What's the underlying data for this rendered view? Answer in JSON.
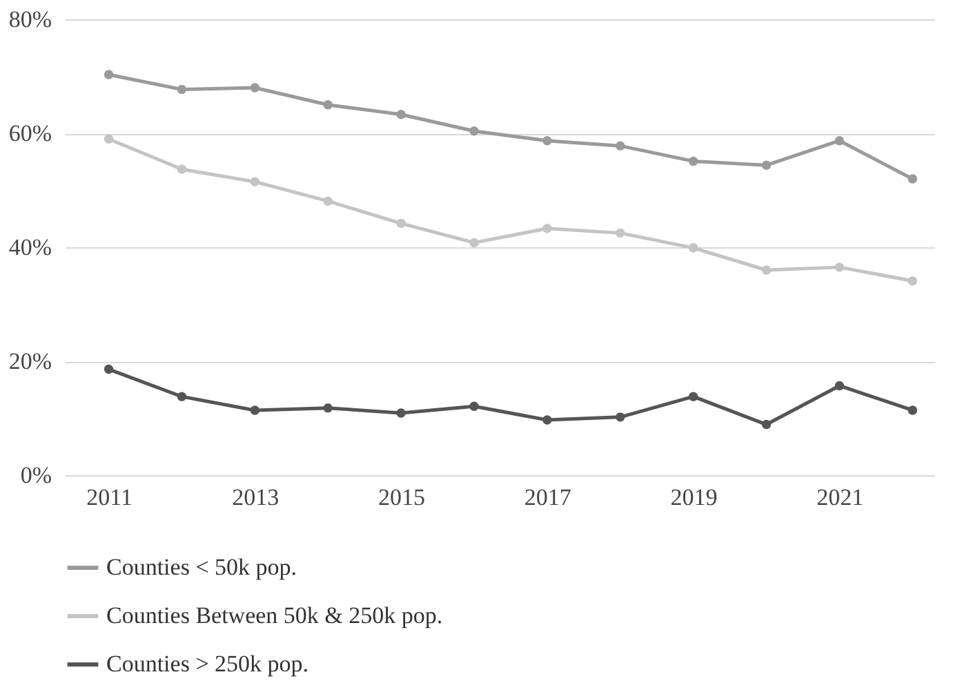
{
  "chart_data": {
    "type": "line",
    "x": [
      2011,
      2012,
      2013,
      2014,
      2015,
      2016,
      2017,
      2018,
      2019,
      2020,
      2021,
      2022
    ],
    "series": [
      {
        "name": "Counties < 50k pop.",
        "color": "#9a9a9a",
        "values": [
          70.3,
          67.7,
          68,
          65,
          63.3,
          60.4,
          58.7,
          57.8,
          55.1,
          54.4,
          58.7,
          52
        ]
      },
      {
        "name": "Counties Between 50k & 250k pop.",
        "color": "#c4c4c4",
        "values": [
          59,
          53.7,
          51.5,
          48.1,
          44.2,
          40.8,
          43.3,
          42.5,
          39.9,
          36,
          36.5,
          34.1
        ]
      },
      {
        "name": "Counties > 250k pop.",
        "color": "#555555",
        "values": [
          18.6,
          13.8,
          11.4,
          11.8,
          10.9,
          12.1,
          9.7,
          10.2,
          13.8,
          8.9,
          15.7,
          11.4
        ]
      }
    ],
    "xlim": [
      2010.4,
      2022.3
    ],
    "xticks": [
      2011,
      2013,
      2015,
      2017,
      2019,
      2021
    ],
    "ylim": [
      0,
      80
    ],
    "yticks": [
      {
        "value": 0,
        "label": "0%"
      },
      {
        "value": 20,
        "label": "20%"
      },
      {
        "value": 40,
        "label": "40%"
      },
      {
        "value": 60,
        "label": "60%"
      },
      {
        "value": 80,
        "label": "80%"
      }
    ],
    "grid": "y",
    "legend": "bottom",
    "marker": "circle",
    "line_style": "solid"
  }
}
